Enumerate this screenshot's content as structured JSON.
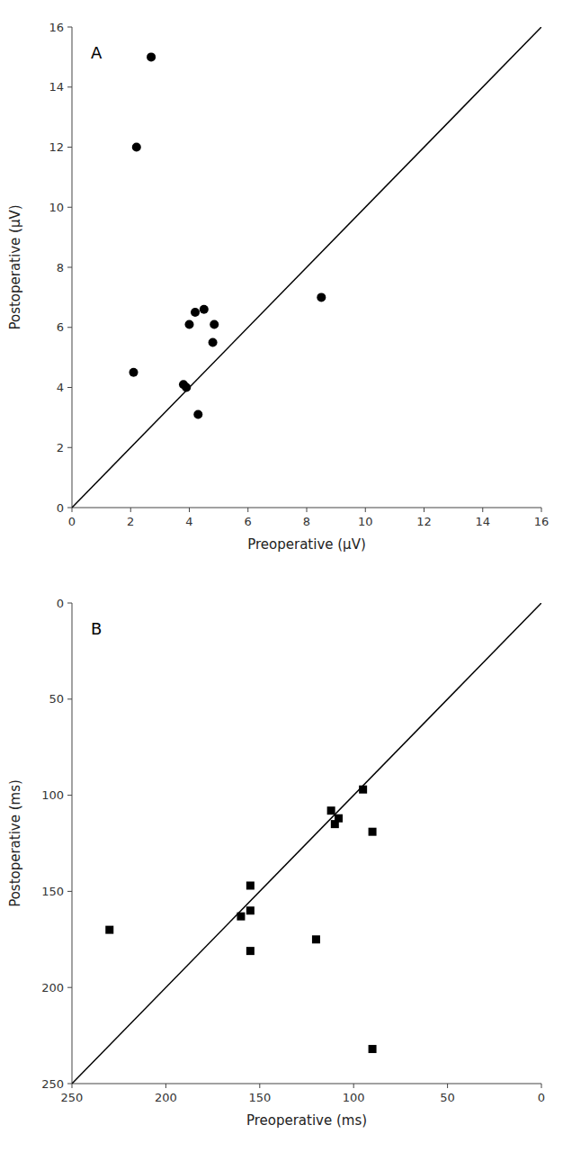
{
  "chart_data": [
    {
      "type": "scatter",
      "title": "A",
      "x_label": "Preoperative (μV)",
      "y_label": "Postoperative (μV)",
      "xlim": [
        0,
        16
      ],
      "ylim": [
        0,
        16
      ],
      "xticks": [
        0,
        2,
        4,
        6,
        8,
        10,
        12,
        14,
        16
      ],
      "yticks": [
        0,
        2,
        4,
        6,
        8,
        10,
        12,
        14,
        16
      ],
      "grid": false,
      "series": [
        {
          "type": "line",
          "color": "#000000",
          "x": [
            0,
            16
          ],
          "values": [
            0,
            16
          ]
        },
        {
          "type": "scatter",
          "marker": "circle",
          "color": "#000000",
          "x": [
            2.2,
            2.7,
            2.1,
            3.8,
            3.9,
            4.0,
            4.2,
            4.5,
            4.8,
            4.85,
            4.3,
            8.5
          ],
          "values": [
            12.0,
            15.0,
            4.5,
            4.1,
            4.0,
            6.1,
            6.5,
            6.6,
            5.5,
            6.1,
            3.1,
            7.0
          ]
        }
      ]
    },
    {
      "type": "scatter",
      "title": "B",
      "x_label": "Preoperative (ms)",
      "y_label": "Postoperative (ms)",
      "xlim": [
        250,
        0
      ],
      "ylim": [
        250,
        0
      ],
      "xticks": [
        250,
        200,
        150,
        100,
        50,
        0
      ],
      "yticks": [
        0,
        50,
        100,
        150,
        200,
        250
      ],
      "grid": false,
      "series": [
        {
          "type": "line",
          "color": "#000000",
          "x": [
            250,
            0
          ],
          "values": [
            250,
            0
          ]
        },
        {
          "type": "scatter",
          "marker": "square",
          "color": "#000000",
          "x": [
            230,
            155,
            155,
            160,
            155,
            120,
            90,
            95,
            110,
            108,
            112,
            90
          ],
          "values": [
            170,
            147,
            160,
            163,
            181,
            175,
            119,
            97,
            115,
            112,
            108,
            232
          ]
        }
      ]
    }
  ]
}
